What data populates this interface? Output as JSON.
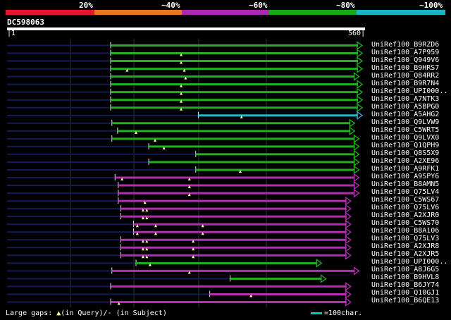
{
  "legend": {
    "labels": [
      "20%",
      "~40%",
      "~60%",
      "~80%",
      "~100%"
    ],
    "colors": [
      "#e8142a",
      "#e8781e",
      "#aa2ab4",
      "#18aa18",
      "#18b4c8"
    ]
  },
  "query": {
    "id": "DC598063",
    "start": "1",
    "end": "560",
    "length": 560
  },
  "hits": [
    {
      "name": "UniRef100_B9RZD6",
      "start": 164,
      "end": 560,
      "color": "green",
      "marks": []
    },
    {
      "name": "UniRef100_A7P959",
      "start": 164,
      "end": 560,
      "color": "green",
      "marks": [
        275
      ]
    },
    {
      "name": "UniRef100_Q949V6",
      "start": 164,
      "end": 560,
      "color": "green",
      "marks": [
        275
      ]
    },
    {
      "name": "UniRef100_B9HRS7",
      "start": 164,
      "end": 560,
      "color": "green",
      "marks": [
        190,
        280
      ]
    },
    {
      "name": "UniRef100_Q84RR2",
      "start": 164,
      "end": 555,
      "color": "green",
      "marks": [
        282
      ]
    },
    {
      "name": "UniRef100_B9R7N4",
      "start": 164,
      "end": 560,
      "color": "green",
      "marks": [
        275
      ]
    },
    {
      "name": "UniRef100_UPI000..",
      "start": 164,
      "end": 560,
      "color": "green",
      "marks": [
        275
      ]
    },
    {
      "name": "UniRef100_A7NTK3",
      "start": 164,
      "end": 560,
      "color": "green",
      "marks": [
        275
      ]
    },
    {
      "name": "UniRef100_A5BPG0",
      "start": 164,
      "end": 560,
      "color": "green",
      "marks": [
        275
      ]
    },
    {
      "name": "UniRef100_A5AHG2",
      "start": 302,
      "end": 560,
      "color": "cyan",
      "marks": [
        370
      ]
    },
    {
      "name": "UniRef100_Q9LVW9",
      "start": 166,
      "end": 548,
      "color": "green",
      "marks": []
    },
    {
      "name": "UniRef100_C5WRT5",
      "start": 175,
      "end": 548,
      "color": "green",
      "marks": [
        204
      ]
    },
    {
      "name": "UniRef100_Q9LVX0",
      "start": 166,
      "end": 555,
      "color": "green",
      "marks": [
        234
      ]
    },
    {
      "name": "UniRef100_Q1QPH9",
      "start": 224,
      "end": 555,
      "color": "green",
      "marks": [
        248
      ]
    },
    {
      "name": "UniRef100_Q8S5X9",
      "start": 298,
      "end": 555,
      "color": "green",
      "marks": []
    },
    {
      "name": "UniRef100_A2XE96",
      "start": 224,
      "end": 555,
      "color": "green",
      "marks": []
    },
    {
      "name": "UniRef100_A9RFK1",
      "start": 298,
      "end": 555,
      "color": "green",
      "marks": [
        368
      ]
    },
    {
      "name": "UniRef100_A9SPY6",
      "start": 171,
      "end": 555,
      "color": "purple",
      "marks": [
        182,
        288
      ]
    },
    {
      "name": "UniRef100_B8AMN5",
      "start": 176,
      "end": 555,
      "color": "purple",
      "marks": [
        288
      ]
    },
    {
      "name": "UniRef100_Q75LV4",
      "start": 176,
      "end": 555,
      "color": "purple",
      "marks": [
        288
      ]
    },
    {
      "name": "UniRef100_C5WS67",
      "start": 176,
      "end": 542,
      "color": "purple",
      "marks": [
        218
      ]
    },
    {
      "name": "UniRef100_Q75LV6",
      "start": 180,
      "end": 542,
      "color": "purple",
      "marks": [
        215,
        221
      ]
    },
    {
      "name": "UniRef100_A2XJR0",
      "start": 180,
      "end": 542,
      "color": "purple",
      "marks": [
        215,
        221
      ]
    },
    {
      "name": "UniRef100_C5WS70",
      "start": 200,
      "end": 542,
      "color": "purple",
      "marks": [
        206,
        235,
        309
      ]
    },
    {
      "name": "UniRef100_B8A106",
      "start": 200,
      "end": 542,
      "color": "purple",
      "marks": [
        206,
        235,
        309
      ]
    },
    {
      "name": "UniRef100_Q75LV3",
      "start": 180,
      "end": 542,
      "color": "purple",
      "marks": [
        215,
        221,
        294
      ]
    },
    {
      "name": "UniRef100_A2XJR8",
      "start": 180,
      "end": 542,
      "color": "purple",
      "marks": [
        215,
        221,
        294
      ]
    },
    {
      "name": "UniRef100_A2XJR5",
      "start": 180,
      "end": 542,
      "color": "purple",
      "marks": [
        215,
        221,
        294
      ]
    },
    {
      "name": "UniRef100_UPI000..",
      "start": 204,
      "end": 496,
      "color": "green",
      "marks": [
        226
      ]
    },
    {
      "name": "UniRef100_A8J6G5",
      "start": 166,
      "end": 555,
      "color": "purple",
      "marks": [
        288
      ]
    },
    {
      "name": "UniRef100_B9HVL8",
      "start": 352,
      "end": 503,
      "color": "green",
      "marks": []
    },
    {
      "name": "UniRef100_B6JY74",
      "start": 164,
      "end": 542,
      "color": "purple",
      "marks": []
    },
    {
      "name": "UniRef100_Q10GJ1",
      "start": 320,
      "end": 542,
      "color": "purple",
      "marks": [
        385
      ]
    },
    {
      "name": "UniRef100_B6QE13",
      "start": 164,
      "end": 542,
      "color": "purple",
      "marks": [
        177
      ]
    }
  ],
  "footer": {
    "gaps_label": "Large gaps:",
    "in_query": "(in Query)/",
    "in_subject": "(in Subject)",
    "scale_label": "=100char."
  }
}
